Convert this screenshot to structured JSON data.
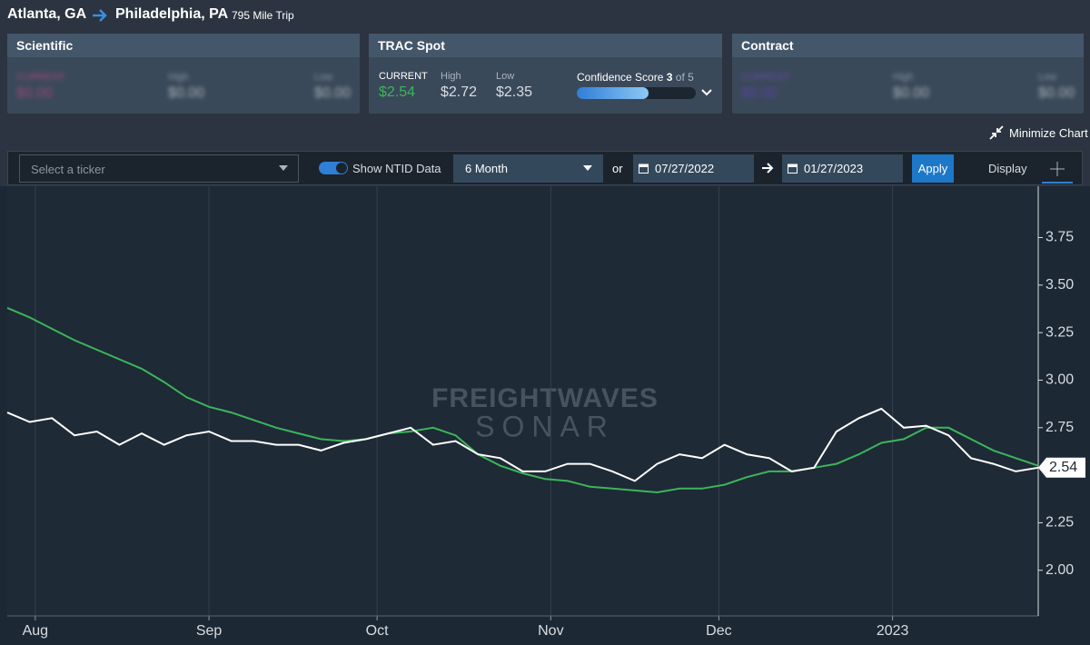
{
  "header": {
    "origin": "Atlanta, GA",
    "destination": "Philadelphia, PA",
    "trip": "795 Mile Trip"
  },
  "cards": [
    {
      "title": "Scientific",
      "fields": [
        {
          "label": "CURRENT",
          "value": "$0.00"
        },
        {
          "label": "High",
          "value": "$0.00"
        },
        {
          "label": "Low",
          "value": "$0.00"
        }
      ]
    },
    {
      "title": "TRAC Spot",
      "fields": [
        {
          "label": "CURRENT",
          "value": "$2.54"
        },
        {
          "label": "High",
          "value": "$2.72"
        },
        {
          "label": "Low",
          "value": "$2.35"
        }
      ],
      "confidence": {
        "label": "Confidence Score",
        "score": 3,
        "of": "of",
        "max": 5
      }
    },
    {
      "title": "Contract",
      "fields": [
        {
          "label": "CURRENT",
          "value": "$0.00"
        },
        {
          "label": "High",
          "value": "$0.00"
        },
        {
          "label": "Low",
          "value": "$0.00"
        }
      ]
    }
  ],
  "minimize": "Minimize Chart",
  "toolbar": {
    "ticker_placeholder": "Select a ticker",
    "toggle": "Show NTID Data",
    "range": "6 Month",
    "or": "or",
    "start": "07/27/2022",
    "end": "01/27/2023",
    "apply": "Apply",
    "display": "Display"
  },
  "chart_data": {
    "type": "line",
    "watermark": [
      "FREIGHTWAVES",
      "SONAR"
    ],
    "x": [
      0,
      4,
      8,
      12,
      16,
      20,
      24,
      28,
      32,
      36,
      40,
      44,
      48,
      52,
      56,
      60,
      64,
      68,
      72,
      76,
      80,
      84,
      88,
      92,
      96,
      100,
      104,
      108,
      112,
      116,
      120,
      124,
      128,
      132,
      136,
      140,
      144,
      148,
      152,
      156,
      160,
      164,
      168,
      172,
      176,
      180,
      184
    ],
    "series": [
      {
        "color": "#ffffff",
        "values": [
          2.83,
          2.78,
          2.8,
          2.71,
          2.73,
          2.66,
          2.72,
          2.66,
          2.71,
          2.73,
          2.68,
          2.68,
          2.66,
          2.66,
          2.63,
          2.67,
          2.69,
          2.72,
          2.75,
          2.66,
          2.68,
          2.61,
          2.59,
          2.52,
          2.52,
          2.56,
          2.56,
          2.52,
          2.47,
          2.56,
          2.61,
          2.59,
          2.66,
          2.61,
          2.59,
          2.52,
          2.54,
          2.73,
          2.8,
          2.85,
          2.75,
          2.76,
          2.71,
          2.59,
          2.56,
          2.52,
          2.54
        ]
      },
      {
        "color": "#3cb55a",
        "values": [
          3.38,
          3.33,
          3.27,
          3.21,
          3.16,
          3.11,
          3.06,
          2.99,
          2.91,
          2.86,
          2.83,
          2.79,
          2.75,
          2.72,
          2.69,
          2.68,
          2.69,
          2.72,
          2.73,
          2.75,
          2.71,
          2.61,
          2.55,
          2.51,
          2.48,
          2.47,
          2.44,
          2.43,
          2.42,
          2.41,
          2.43,
          2.43,
          2.45,
          2.49,
          2.52,
          2.52,
          2.54,
          2.56,
          2.61,
          2.67,
          2.69,
          2.75,
          2.75,
          2.69,
          2.63,
          2.59,
          2.55
        ]
      }
    ],
    "xlim": [
      0,
      184
    ],
    "xticks": [
      {
        "value": 5,
        "label": "Aug"
      },
      {
        "value": 36,
        "label": "Sep"
      },
      {
        "value": 66,
        "label": "Oct"
      },
      {
        "value": 97,
        "label": "Nov"
      },
      {
        "value": 127,
        "label": "Dec"
      },
      {
        "value": 158,
        "label": "2023"
      }
    ],
    "ylim": [
      1.76,
      4.02
    ],
    "yticks": [
      {
        "value": 2,
        "label": "2.00"
      },
      {
        "value": 2.25,
        "label": "2.25"
      },
      {
        "value": 2.75,
        "label": "2.75"
      },
      {
        "value": 3,
        "label": "3.00"
      },
      {
        "value": 3.25,
        "label": "3.25"
      },
      {
        "value": 3.5,
        "label": "3.50"
      },
      {
        "value": 3.75,
        "label": "3.75"
      }
    ],
    "grid": true
  }
}
